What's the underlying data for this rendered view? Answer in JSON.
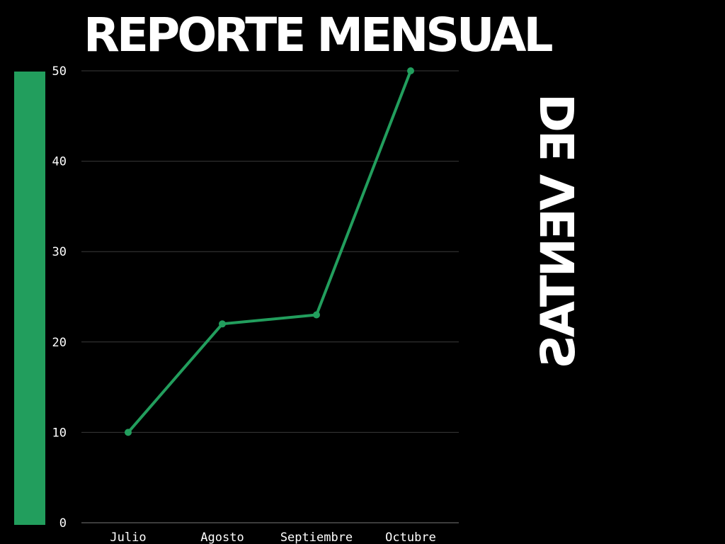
{
  "title": "REPORTE MENSUAL",
  "subtitle": "DE VENTAS",
  "colors": {
    "background": "#000000",
    "accent": "#229e5d",
    "line": "#229e5d",
    "grid": "#3a3a3a",
    "text": "#ffffff"
  },
  "chart_data": {
    "type": "line",
    "categories": [
      "Julio",
      "Agosto",
      "Septiembre",
      "Octubre"
    ],
    "series": [
      {
        "values": [
          10,
          22,
          23,
          50
        ]
      }
    ],
    "yticks": [
      "0",
      "10",
      "20",
      "30",
      "40",
      "50"
    ],
    "ylim": [
      0,
      50
    ],
    "grid": true,
    "legend": "none"
  }
}
